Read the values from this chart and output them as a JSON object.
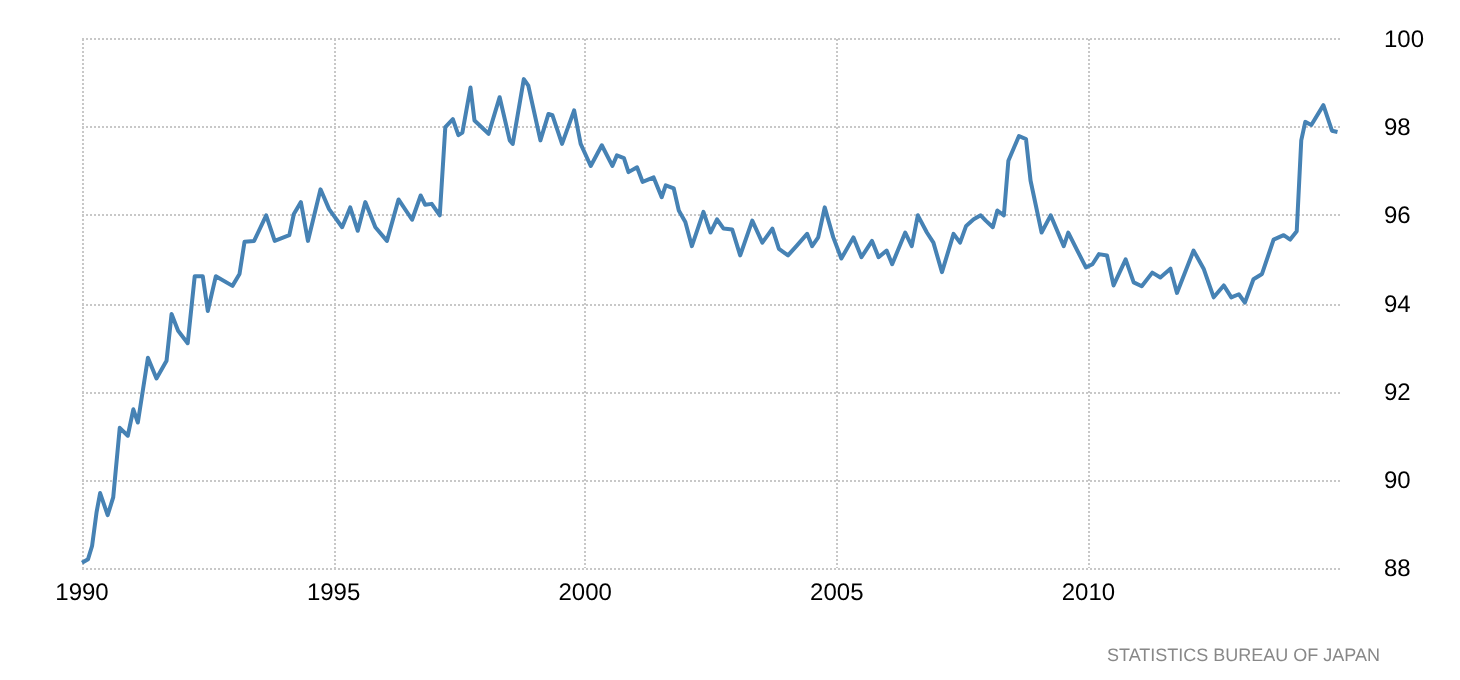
{
  "chart_data": {
    "type": "line",
    "xlim": [
      1990,
      2015
    ],
    "xticks": [
      1990,
      1995,
      2000,
      2005,
      2010
    ],
    "ylim": [
      88,
      100
    ],
    "yticks": [
      88,
      90,
      92,
      94,
      96,
      98,
      100
    ],
    "grid": true,
    "marker": "none",
    "line_style": "solid",
    "annotations": [
      "STATISTICS BUREAU OF JAPAN"
    ],
    "x": [
      1990.0,
      1990.12,
      1990.2,
      1990.29,
      1990.36,
      1990.51,
      1990.62,
      1990.75,
      1990.91,
      1991.02,
      1991.11,
      1991.31,
      1991.48,
      1991.68,
      1991.78,
      1991.91,
      1992.1,
      1992.24,
      1992.4,
      1992.5,
      1992.66,
      1992.99,
      1993.13,
      1993.23,
      1993.42,
      1993.66,
      1993.83,
      1994.12,
      1994.21,
      1994.35,
      1994.49,
      1994.74,
      1994.91,
      1995.17,
      1995.33,
      1995.48,
      1995.63,
      1995.83,
      1996.06,
      1996.29,
      1996.56,
      1996.73,
      1996.82,
      1996.95,
      1997.11,
      1997.22,
      1997.37,
      1997.48,
      1997.56,
      1997.72,
      1997.8,
      1998.08,
      1998.3,
      1998.5,
      1998.56,
      1998.78,
      1998.87,
      1999.11,
      1999.27,
      1999.35,
      1999.54,
      1999.78,
      1999.91,
      2000.11,
      2000.33,
      2000.54,
      2000.63,
      2000.77,
      2000.86,
      2001.03,
      2001.14,
      2001.36,
      2001.52,
      2001.6,
      2001.76,
      2001.86,
      2001.99,
      2002.12,
      2002.35,
      2002.49,
      2002.62,
      2002.75,
      2002.92,
      2003.08,
      2003.32,
      2003.52,
      2003.72,
      2003.85,
      2004.03,
      2004.21,
      2004.41,
      2004.51,
      2004.63,
      2004.76,
      2004.93,
      2005.09,
      2005.33,
      2005.49,
      2005.7,
      2005.83,
      2005.99,
      2006.1,
      2006.36,
      2006.49,
      2006.61,
      2006.79,
      2006.92,
      2007.09,
      2007.32,
      2007.45,
      2007.57,
      2007.72,
      2007.86,
      2007.96,
      2008.1,
      2008.19,
      2008.32,
      2008.41,
      2008.62,
      2008.76,
      2008.85,
      2009.07,
      2009.25,
      2009.51,
      2009.6,
      2009.78,
      2009.95,
      2010.08,
      2010.21,
      2010.37,
      2010.5,
      2010.74,
      2010.9,
      2011.06,
      2011.27,
      2011.43,
      2011.63,
      2011.76,
      2012.09,
      2012.29,
      2012.49,
      2012.69,
      2012.84,
      2012.99,
      2013.11,
      2013.28,
      2013.45,
      2013.68,
      2013.88,
      2014.01,
      2014.14,
      2014.23,
      2014.31,
      2014.43,
      2014.67,
      2014.84,
      2014.95
    ],
    "series": [
      {
        "color": "#4682b4",
        "values": [
          88.12,
          88.2,
          88.5,
          89.27,
          89.7,
          89.2,
          89.6,
          91.18,
          91.0,
          91.6,
          91.3,
          92.77,
          92.3,
          92.7,
          93.76,
          93.38,
          93.1,
          94.62,
          94.62,
          93.83,
          94.62,
          94.4,
          94.67,
          95.4,
          95.42,
          96.0,
          95.42,
          95.55,
          96.03,
          96.3,
          95.42,
          96.59,
          96.14,
          95.73,
          96.18,
          95.65,
          96.3,
          95.73,
          95.42,
          96.36,
          95.9,
          96.45,
          96.24,
          96.26,
          96.0,
          98.0,
          98.18,
          97.82,
          97.88,
          98.9,
          98.15,
          97.85,
          98.68,
          97.7,
          97.62,
          99.09,
          98.94,
          97.7,
          98.3,
          98.27,
          97.62,
          98.38,
          97.62,
          97.12,
          97.59,
          97.12,
          97.36,
          97.3,
          96.98,
          97.09,
          96.76,
          96.86,
          96.41,
          96.68,
          96.61,
          96.11,
          95.85,
          95.3,
          96.08,
          95.61,
          95.91,
          95.7,
          95.68,
          95.09,
          95.88,
          95.38,
          95.7,
          95.24,
          95.09,
          95.32,
          95.58,
          95.3,
          95.5,
          96.18,
          95.5,
          95.02,
          95.5,
          95.05,
          95.42,
          95.05,
          95.2,
          94.89,
          95.61,
          95.3,
          96.0,
          95.61,
          95.38,
          94.71,
          95.58,
          95.38,
          95.76,
          95.91,
          96.0,
          95.88,
          95.73,
          96.11,
          96.0,
          97.24,
          97.8,
          97.73,
          96.79,
          95.61,
          96.0,
          95.3,
          95.61,
          95.2,
          94.82,
          94.89,
          95.12,
          95.09,
          94.41,
          95.0,
          94.48,
          94.39,
          94.7,
          94.59,
          94.79,
          94.24,
          95.2,
          94.79,
          94.14,
          94.41,
          94.14,
          94.21,
          94.02,
          94.55,
          94.67,
          95.45,
          95.55,
          95.45,
          95.64,
          97.7,
          98.12,
          98.05,
          98.5,
          97.92,
          97.89
        ]
      }
    ]
  }
}
